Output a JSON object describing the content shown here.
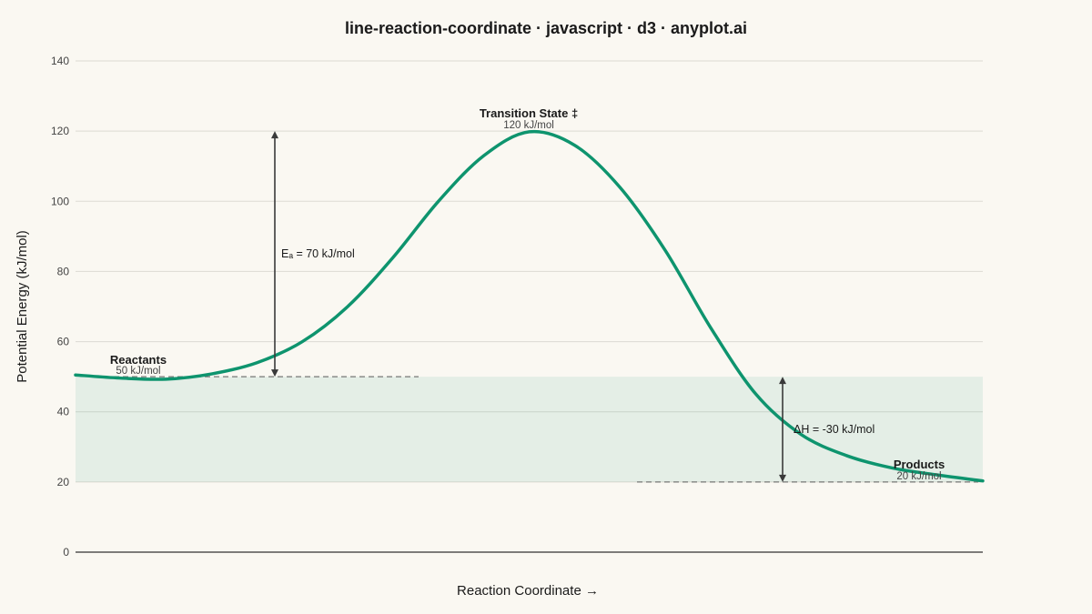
{
  "chart_data": {
    "type": "line",
    "title": "line-reaction-coordinate · javascript · d3 · anyplot.ai",
    "xlabel": "Reaction Coordinate →",
    "ylabel": "Potential Energy (kJ/mol)",
    "ylim": [
      0,
      140
    ],
    "xlim": [
      0,
      1
    ],
    "yticks": [
      0,
      20,
      40,
      60,
      80,
      100,
      120,
      140
    ],
    "grid": true,
    "curve_color": "#0E946E",
    "series": [
      {
        "x": [
          0.0,
          0.05,
          0.1,
          0.15,
          0.2,
          0.25,
          0.3,
          0.35,
          0.4,
          0.45,
          0.5,
          0.55,
          0.6,
          0.65,
          0.7,
          0.75,
          0.8,
          0.85,
          0.9,
          0.95,
          1.0
        ],
        "values": [
          50.5,
          49.6,
          49.3,
          50.8,
          54.0,
          60.0,
          70.0,
          84.0,
          100.0,
          113.0,
          119.8,
          116.0,
          104.0,
          86.0,
          64.0,
          45.0,
          33.5,
          27.5,
          24.0,
          22.0,
          20.3
        ]
      }
    ],
    "annotations": {
      "reactants": {
        "name": "Reactants",
        "value_label": "50 kJ/mol",
        "energy": 50
      },
      "transition": {
        "name": "Transition State ‡",
        "value_label": "120 kJ/mol",
        "energy": 120
      },
      "products": {
        "name": "Products",
        "value_label": "20 kJ/mol",
        "energy": 20
      },
      "activation": {
        "label": "Eₐ = 70 kJ/mol",
        "from": 50,
        "to": 120
      },
      "enthalpy": {
        "label": "ΔH = -30 kJ/mol",
        "from": 50,
        "to": 20
      }
    }
  }
}
